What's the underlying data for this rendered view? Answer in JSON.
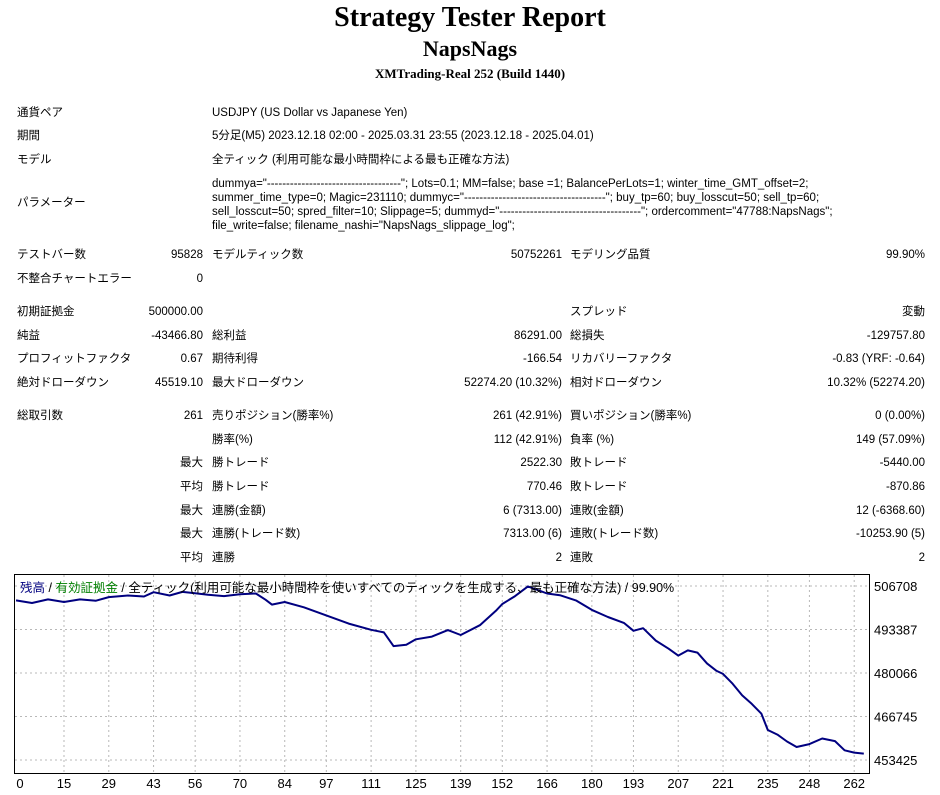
{
  "header": {
    "title": "Strategy Tester Report",
    "expert": "NapsNags",
    "server": "XMTrading-Real 252 (Build 1440)"
  },
  "settings": {
    "symbol_label": "通貨ペア",
    "symbol": "USDJPY (US Dollar vs Japanese Yen)",
    "period_label": "期間",
    "period": "5分足(M5) 2023.12.18 02:00 - 2025.03.31 23:55 (2023.12.18 - 2025.04.01)",
    "model_label": "モデル",
    "model": "全ティック (利用可能な最小時間枠による最も正確な方法)",
    "params_label": "パラメーター",
    "params_lines": [
      "dummya=\"-----------------------------------\"; Lots=0.1; MM=false; base    =1; BalancePerLots=1; winter_time_GMT_offset=2;",
      "summer_time_type=0; Magic=231110; dummyc=\"-------------------------------------\"; buy_tp=60; buy_losscut=50; sell_tp=60;",
      "sell_losscut=50; spred_filter=10; Slippage=5; dummyd=\"-------------------------------------\"; ordercomment=\"47788:NapsNags\";",
      "file_write=false; filename_nashi=\"NapsNags_slippage_log\";"
    ]
  },
  "stats": {
    "bars_label": "テストバー数",
    "bars": "95828",
    "ticks_label": "モデルティック数",
    "ticks": "50752261",
    "quality_label": "モデリング品質",
    "quality": "99.90%",
    "mismatch_label": "不整合チャートエラー",
    "mismatch": "0",
    "deposit_label": "初期証拠金",
    "deposit": "500000.00",
    "spread_label": "スプレッド",
    "spread": "変動",
    "net_label": "純益",
    "net": "-43466.80",
    "gross_profit_label": "総利益",
    "gross_profit": "86291.00",
    "gross_loss_label": "総損失",
    "gross_loss": "-129757.80",
    "pf_label": "プロフィットファクタ",
    "pf": "0.67",
    "payoff_label": "期待利得",
    "payoff": "-166.54",
    "recovery_label": "リカバリーファクタ",
    "recovery": "-0.83 (YRF: -0.64)",
    "abs_dd_label": "絶対ドローダウン",
    "abs_dd": "45519.10",
    "max_dd_label": "最大ドローダウン",
    "max_dd": "52274.20 (10.32%)",
    "rel_dd_label": "相対ドローダウン",
    "rel_dd": "10.32% (52274.20)",
    "trades_label": "総取引数",
    "trades": "261",
    "short_label": "売りポジション(勝率%)",
    "short": "261 (42.91%)",
    "long_label": "買いポジション(勝率%)",
    "long": "0 (0.00%)",
    "win_rate_label": "勝率(%)",
    "win_rate": "112 (42.91%)",
    "loss_rate_label": "負率 (%)",
    "loss_rate": "149 (57.09%)",
    "max_label": "最大",
    "avg_label": "平均",
    "win_trade_label": "勝トレード",
    "loss_trade_label": "敗トレード",
    "largest_win": "2522.30",
    "largest_loss": "-5440.00",
    "avg_win": "770.46",
    "avg_loss": "-870.86",
    "consec_wins_amt_label": "連勝(金額)",
    "consec_wins_amt": "6 (7313.00)",
    "consec_losses_amt_label": "連敗(金額)",
    "consec_losses_amt": "12 (-6368.60)",
    "consec_profit_label": "連勝(トレード数)",
    "consec_profit": "7313.00 (6)",
    "consec_loss_label": "連敗(トレード数)",
    "consec_loss": "-10253.90 (5)",
    "avg_wins_label": "連勝",
    "avg_wins": "2",
    "avg_losses_label": "連敗",
    "avg_losses": "2"
  },
  "chart_data": {
    "type": "line",
    "legend_balance": "残高",
    "legend_sep1": " / ",
    "legend_equity": "有効証拠金",
    "legend_sep2": " / ",
    "legend_rest": "全ティック(利用可能な最小時間枠を使いすべてのティックを生成する、最も正確な方法) / 99.90%",
    "balance_color": "#000080",
    "equity_color": "#008000",
    "xlim": [
      0,
      266
    ],
    "ylim": [
      453425,
      506708
    ],
    "x_ticks": [
      "0",
      "15",
      "29",
      "43",
      "56",
      "70",
      "84",
      "97",
      "111",
      "125",
      "139",
      "152",
      "166",
      "180",
      "193",
      "207",
      "221",
      "235",
      "248",
      "262"
    ],
    "y_ticks": [
      "506708",
      "493387",
      "480066",
      "466745",
      "453425"
    ],
    "grid": true,
    "series": [
      {
        "x": [
          0,
          5,
          10,
          15,
          20,
          25,
          29,
          35,
          40,
          43,
          48,
          52,
          56,
          60,
          65,
          70,
          75,
          78,
          80,
          84,
          90,
          97,
          104,
          111,
          115,
          118,
          122,
          125,
          130,
          135,
          139,
          145,
          150,
          152,
          156,
          160,
          163,
          166,
          170,
          175,
          180,
          185,
          190,
          193,
          196,
          200,
          204,
          207,
          210,
          213,
          216,
          219,
          221,
          224,
          227,
          230,
          233,
          235,
          238,
          241,
          244,
          248,
          252,
          256,
          259,
          262,
          265
        ],
        "y": [
          502300,
          501500,
          502600,
          501800,
          502600,
          502200,
          503300,
          503800,
          503500,
          504800,
          503800,
          504900,
          504500,
          504000,
          503600,
          504200,
          504400,
          502500,
          501000,
          501800,
          500200,
          497700,
          495200,
          493300,
          492500,
          488300,
          488700,
          490400,
          491200,
          493200,
          491700,
          494700,
          499100,
          501200,
          503600,
          506600,
          505500,
          504400,
          503900,
          502300,
          499400,
          497200,
          495400,
          493000,
          493800,
          490000,
          487500,
          485400,
          487000,
          486300,
          483000,
          480700,
          479800,
          476800,
          473200,
          470600,
          467600,
          462600,
          461200,
          459100,
          457400,
          458300,
          460000,
          459200,
          456400,
          455700,
          455400
        ]
      }
    ]
  }
}
